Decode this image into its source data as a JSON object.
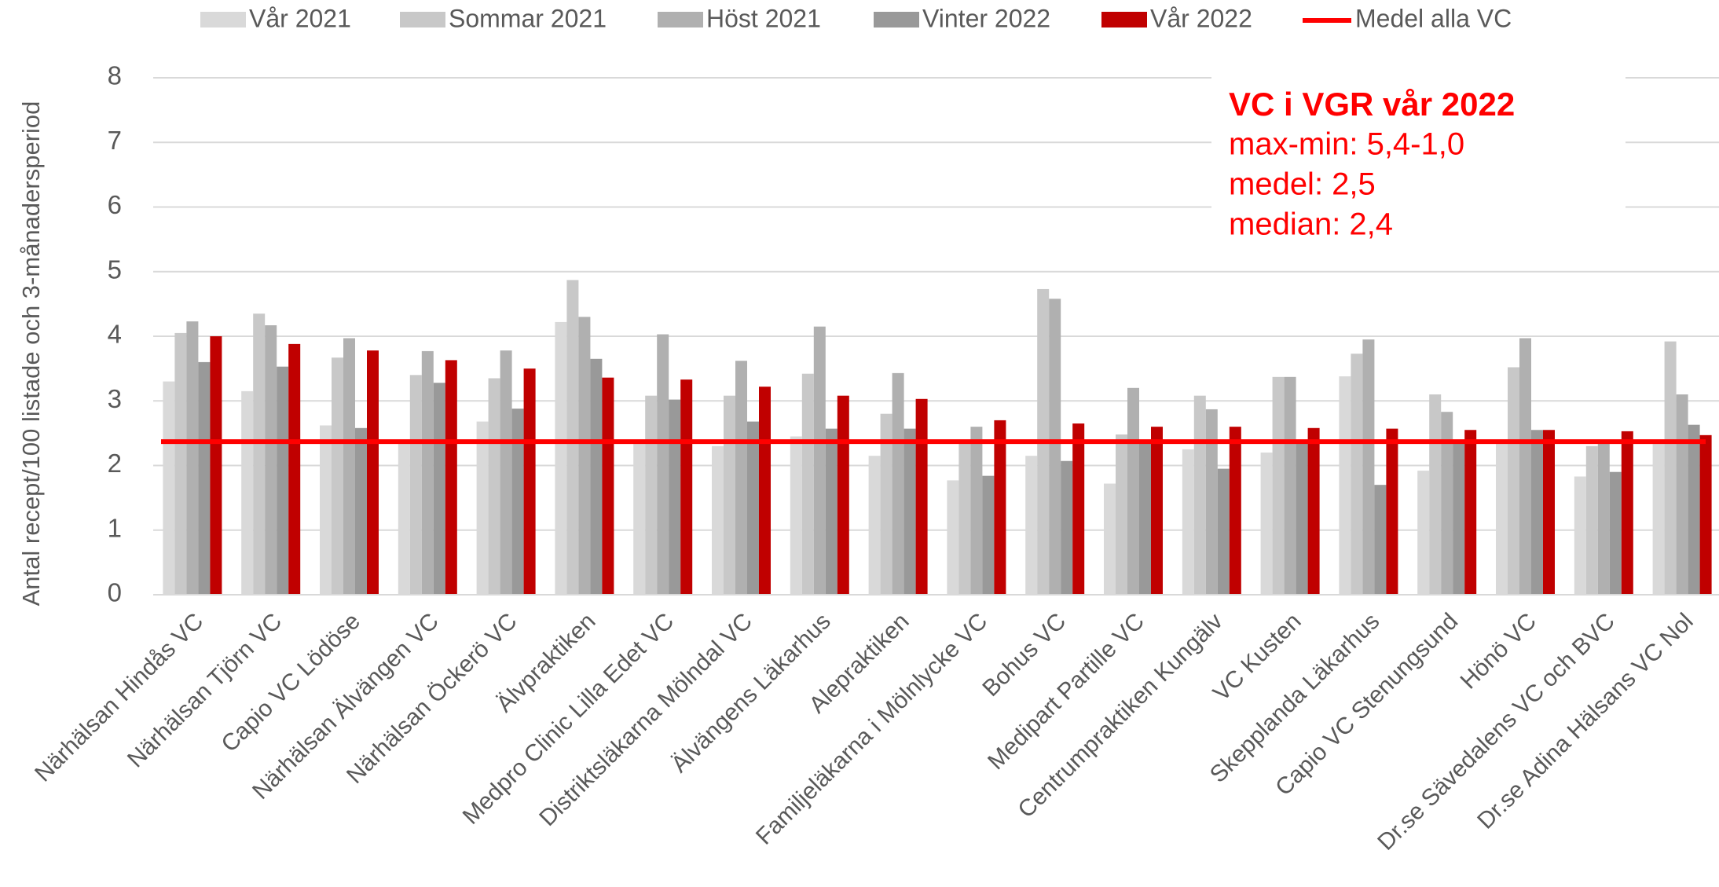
{
  "chart_data": {
    "type": "bar",
    "y_label": "Antal recept/100 listade och 3-månadersperiod",
    "categories": [
      "Närhälsan Hindås VC",
      "Närhälsan Tjörn VC",
      "Capio VC Lödöse",
      "Närhälsan Älvängen VC",
      "Närhälsan Öckerö VC",
      "Älvpraktiken",
      "Medpro Clinic Lilla Edet VC",
      "Distriktsläkarna Mölndal VC",
      "Älvängens Läkarhus",
      "Alepraktiken",
      "Familjeläkarna i Mölnlycke VC",
      "Bohus VC",
      "Medipart Partille VC",
      "Centrumpraktiken Kungälv",
      "VC Kusten",
      "Skepplanda Läkarhus",
      "Capio VC Stenungsund",
      "Hönö VC",
      "Dr.se Sävedalens VC och BVC",
      "Dr.se Adina Hälsans VC Nol"
    ],
    "series": [
      {
        "name": "Vår 2021",
        "color": "#d9d9d9",
        "values": [
          3.3,
          3.15,
          2.62,
          2.38,
          2.68,
          4.22,
          2.4,
          2.3,
          2.45,
          2.15,
          1.77,
          2.15,
          1.72,
          2.25,
          2.2,
          3.38,
          1.92,
          2.38,
          1.83,
          2.38
        ]
      },
      {
        "name": "Sommar 2021",
        "color": "#c8c8c8",
        "values": [
          4.05,
          4.35,
          3.67,
          3.4,
          3.35,
          4.87,
          3.08,
          3.08,
          3.42,
          2.8,
          2.35,
          4.73,
          2.48,
          3.08,
          3.37,
          3.73,
          3.1,
          3.52,
          2.3,
          3.92
        ]
      },
      {
        "name": "Höst 2021",
        "color": "#b0b0b0",
        "values": [
          4.23,
          4.17,
          3.97,
          3.77,
          3.78,
          4.3,
          4.03,
          3.62,
          4.15,
          3.43,
          2.6,
          4.58,
          3.2,
          2.87,
          3.37,
          3.95,
          2.83,
          3.97,
          2.38,
          3.1
        ]
      },
      {
        "name": "Vinter 2022",
        "color": "#999999",
        "values": [
          3.6,
          3.53,
          2.58,
          3.28,
          2.88,
          3.65,
          3.02,
          2.68,
          2.57,
          2.57,
          1.84,
          2.07,
          2.38,
          1.95,
          2.38,
          1.7,
          2.38,
          2.55,
          1.9,
          2.63
        ]
      },
      {
        "name": "Vår 2022",
        "color": "#c00000",
        "values": [
          4.0,
          3.88,
          3.78,
          3.63,
          3.5,
          3.36,
          3.33,
          3.22,
          3.08,
          3.03,
          2.7,
          2.65,
          2.6,
          2.6,
          2.58,
          2.57,
          2.55,
          2.55,
          2.53,
          2.47
        ]
      }
    ],
    "mean_line": {
      "name": "Medel alla VC",
      "color": "#ff0000",
      "value": 2.37
    },
    "annotation": {
      "title": "VC i VGR vår 2022",
      "lines": [
        "max-min: 5,4-1,0",
        "medel: 2,5",
        "median: 2,4"
      ],
      "color": "#ff0000"
    },
    "ylim": [
      0,
      8
    ],
    "yticks": [
      0,
      1,
      2,
      3,
      4,
      5,
      6,
      7,
      8
    ],
    "grid": true
  }
}
